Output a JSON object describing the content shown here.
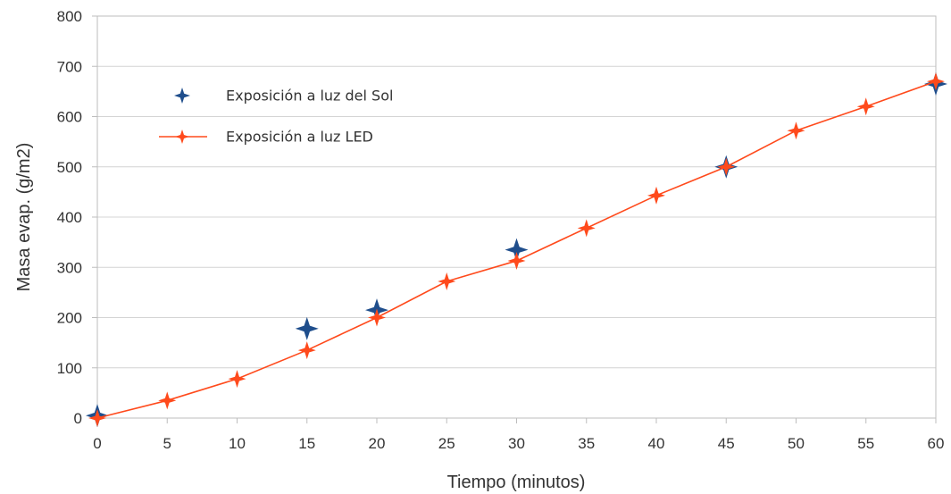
{
  "chart_data": {
    "type": "scatter",
    "title": "",
    "xlabel": "Tiempo (minutos)",
    "ylabel": "Masa evap. (g/m2)",
    "xlim": [
      0,
      60
    ],
    "ylim": [
      0,
      800
    ],
    "xticks": [
      0,
      5,
      10,
      15,
      20,
      25,
      30,
      35,
      40,
      45,
      50,
      55,
      60
    ],
    "yticks": [
      0,
      100,
      200,
      300,
      400,
      500,
      600,
      700,
      800
    ],
    "grid": true,
    "legend_position": "top-left",
    "series": [
      {
        "name": "Exposición a luz del Sol",
        "color": "#1f4e8c",
        "marker": "four-point-star",
        "line": false,
        "x": [
          0,
          15,
          20,
          30,
          45,
          60
        ],
        "y": [
          5,
          178,
          215,
          335,
          500,
          665
        ]
      },
      {
        "name": "Exposición a luz LED",
        "color": "#ff4a1c",
        "marker": "four-point-star",
        "line": true,
        "x": [
          0,
          5,
          10,
          15,
          20,
          25,
          30,
          35,
          40,
          45,
          50,
          55,
          60
        ],
        "y": [
          0,
          35,
          78,
          135,
          200,
          272,
          313,
          378,
          443,
          500,
          572,
          620,
          670
        ]
      }
    ]
  }
}
